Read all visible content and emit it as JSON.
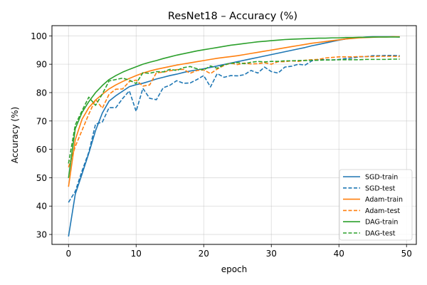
{
  "chart_data": {
    "type": "line",
    "title": "ResNet18 – Accuracy (%)",
    "xlabel": "epoch",
    "ylabel": "Accuracy (%)",
    "xlim": [
      -2.45,
      51.45
    ],
    "ylim": [
      26.5,
      103.6
    ],
    "xticks": [
      0,
      10,
      20,
      30,
      40,
      50
    ],
    "yticks": [
      30,
      40,
      50,
      60,
      70,
      80,
      90,
      100
    ],
    "grid": true,
    "legend_position": "lower-right",
    "series": [
      {
        "name": "SGD-train",
        "color": "#1f77b4",
        "dash": "solid",
        "values": [
          29.3,
          44.2,
          51.3,
          58.6,
          66.6,
          72.8,
          77.0,
          78.9,
          80.5,
          82.1,
          82.8,
          83.3,
          84.0,
          84.8,
          85.4,
          86.0,
          86.5,
          87.1,
          87.6,
          88.0,
          88.4,
          88.9,
          89.4,
          89.9,
          90.4,
          90.9,
          91.4,
          91.9,
          92.4,
          92.9,
          93.4,
          93.9,
          94.4,
          94.9,
          95.4,
          95.9,
          96.5,
          97.0,
          97.5,
          98.0,
          98.5,
          98.9,
          99.2,
          99.4,
          99.6,
          99.7,
          99.7,
          99.7,
          99.7,
          99.6
        ]
      },
      {
        "name": "SGD-test",
        "color": "#1f77b4",
        "dash": "dashed",
        "values": [
          41.3,
          45.2,
          52.4,
          59.0,
          68.9,
          69.6,
          74.7,
          74.7,
          77.9,
          80.6,
          73.4,
          81.5,
          78.0,
          77.5,
          81.7,
          82.6,
          84.2,
          83.3,
          83.4,
          84.6,
          86.0,
          82.0,
          86.7,
          85.4,
          86.0,
          85.9,
          86.3,
          87.8,
          86.9,
          89.0,
          87.4,
          86.9,
          89.0,
          89.3,
          90.0,
          89.7,
          91.2,
          91.6,
          91.6,
          91.5,
          91.7,
          92.0,
          92.2,
          92.6,
          92.7,
          93.0,
          93.0,
          93.1,
          93.1,
          93.0
        ]
      },
      {
        "name": "Adam-train",
        "color": "#ff7f0e",
        "dash": "solid",
        "values": [
          46.8,
          63.4,
          70.6,
          74.7,
          77.4,
          79.4,
          81.3,
          82.7,
          83.9,
          85.0,
          86.0,
          86.9,
          87.6,
          88.2,
          88.7,
          89.2,
          89.7,
          90.1,
          90.5,
          90.9,
          91.3,
          91.7,
          92.1,
          92.4,
          92.7,
          93.0,
          93.4,
          93.8,
          94.2,
          94.6,
          95.0,
          95.4,
          95.8,
          96.2,
          96.6,
          97.0,
          97.4,
          97.7,
          98.0,
          98.3,
          98.6,
          98.9,
          99.1,
          99.3,
          99.4,
          99.5,
          99.6,
          99.6,
          99.7,
          99.7
        ]
      },
      {
        "name": "Adam-test",
        "color": "#ff7f0e",
        "dash": "dashed",
        "values": [
          53.7,
          61.0,
          66.7,
          72.4,
          77.6,
          74.5,
          79.4,
          81.2,
          81.3,
          83.9,
          84.4,
          82.3,
          82.7,
          87.0,
          87.2,
          87.7,
          88.1,
          88.2,
          86.8,
          87.8,
          88.0,
          86.7,
          88.3,
          89.6,
          90.4,
          89.9,
          90.4,
          90.1,
          90.2,
          90.5,
          90.0,
          90.9,
          90.9,
          91.2,
          91.0,
          91.4,
          91.6,
          91.7,
          92.2,
          92.4,
          92.6,
          92.6,
          92.6,
          92.7,
          92.7,
          92.7,
          92.8,
          92.8,
          92.8,
          92.7
        ]
      },
      {
        "name": "DAG-train",
        "color": "#2ca02c",
        "dash": "solid",
        "values": [
          49.9,
          67.3,
          73.0,
          76.8,
          80.0,
          82.5,
          84.6,
          86.0,
          87.2,
          88.2,
          89.1,
          90.0,
          90.7,
          91.3,
          92.0,
          92.6,
          93.2,
          93.7,
          94.2,
          94.7,
          95.1,
          95.5,
          95.9,
          96.3,
          96.7,
          97.0,
          97.3,
          97.6,
          97.9,
          98.1,
          98.3,
          98.5,
          98.7,
          98.8,
          98.9,
          99.0,
          99.1,
          99.2,
          99.2,
          99.3,
          99.3,
          99.4,
          99.4,
          99.5,
          99.5,
          99.6,
          99.6,
          99.6,
          99.6,
          99.6
        ]
      },
      {
        "name": "DAG-test",
        "color": "#2ca02c",
        "dash": "dashed",
        "values": [
          55.0,
          68.6,
          73.6,
          78.4,
          75.5,
          79.5,
          84.1,
          84.6,
          85.1,
          84.4,
          83.2,
          87.0,
          86.8,
          87.4,
          87.3,
          88.2,
          87.8,
          88.8,
          89.2,
          88.4,
          88.0,
          89.4,
          88.6,
          89.8,
          90.3,
          90.6,
          90.2,
          90.7,
          91.0,
          90.8,
          91.0,
          91.0,
          91.2,
          91.2,
          91.3,
          91.3,
          91.4,
          91.4,
          91.5,
          91.5,
          91.6,
          91.6,
          91.6,
          91.6,
          91.7,
          91.7,
          91.7,
          91.7,
          91.8,
          91.8
        ]
      }
    ]
  }
}
